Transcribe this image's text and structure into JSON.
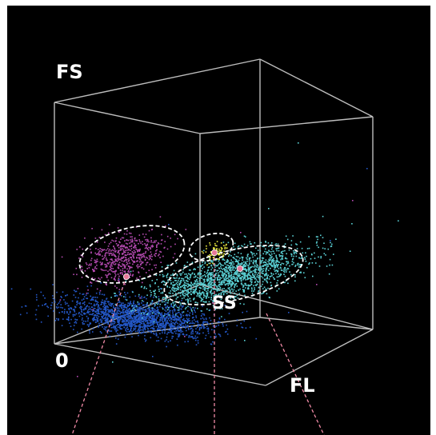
{
  "colors": {
    "background": "#000000",
    "frame": "#ffffff",
    "box_edges": "#bdbdbd",
    "gate_outline": "#ffffff",
    "leader_lines": "#f08aa6",
    "centroid_marker": "#e8789a"
  },
  "chart_data": {
    "type": "scatter",
    "projection": "3d",
    "title": "",
    "axes": {
      "vertical": "FS",
      "depth": "SS",
      "horizontal": "FL",
      "origin": "0"
    },
    "grid": false,
    "legend": "none",
    "series": [
      {
        "color": "#b44ab0",
        "region": "upper-left",
        "gated": true,
        "centroid_marked": true
      },
      {
        "color": "#2458c8",
        "region": "lower-left",
        "gated": false,
        "centroid_marked": false
      },
      {
        "color": "#eaea40",
        "region": "center",
        "gated": true,
        "centroid_marked": true
      },
      {
        "color": "#5ad0d4",
        "region": "center-right",
        "gated": true,
        "centroid_marked": true
      }
    ]
  }
}
